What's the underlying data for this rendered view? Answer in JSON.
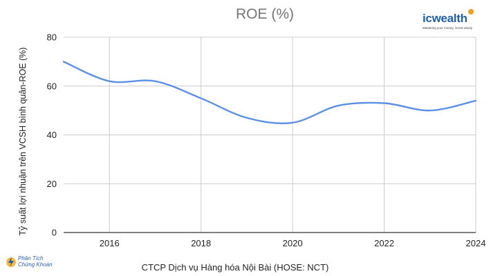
{
  "logo": {
    "word": "icwealth",
    "tagline": "Mastering your money, invest wisely"
  },
  "watermark": {
    "line1": "Phân Tích",
    "line2": "Chứng Khoán"
  },
  "chart_data": {
    "type": "line",
    "title": "ROE (%)",
    "xlabel": "CTCP Dịch vụ Hàng hóa Nội Bài (HOSE: NCT)",
    "ylabel": "Tỷ suất lợi nhuận trên VCSH bình quân-ROE (%)",
    "x": [
      2015,
      2016,
      2017,
      2018,
      2019,
      2020,
      2021,
      2022,
      2023,
      2024
    ],
    "series": [
      {
        "values": [
          70,
          62,
          62,
          55,
          47,
          45,
          52,
          53,
          50,
          54
        ],
        "color": "#5b8ee6"
      }
    ],
    "xlim": [
      2015,
      2024
    ],
    "xticks": [
      "2016",
      "2018",
      "2020",
      "2022",
      "2024"
    ],
    "ylim": [
      0,
      80
    ],
    "yticks": [
      "0",
      "20",
      "40",
      "60",
      "80"
    ],
    "grid": true,
    "colors": {
      "title": "#757575",
      "axis_text": "#222222",
      "grid": "#cccccc",
      "axis": "#333333"
    }
  }
}
